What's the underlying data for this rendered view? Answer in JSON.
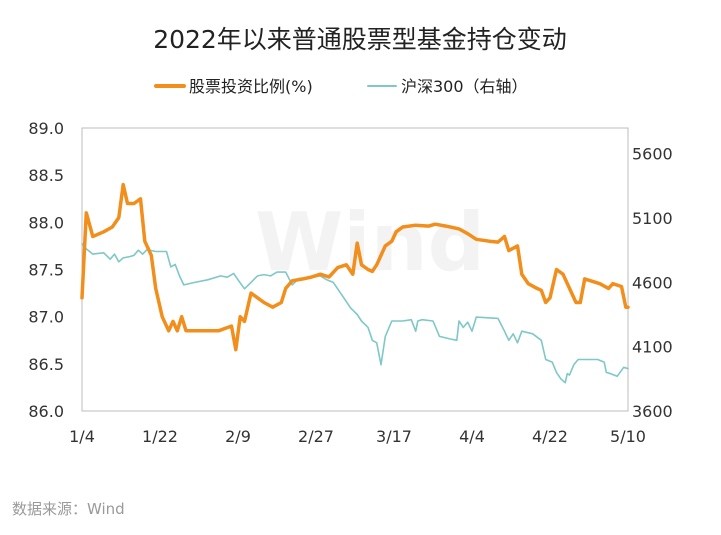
{
  "chart_data": {
    "type": "line",
    "title": "2022年以来普通股票型基金持仓变动",
    "source_note": "数据来源：Wind",
    "watermark": "Wind",
    "x_ticks": [
      "1/4",
      "1/22",
      "2/9",
      "2/27",
      "3/17",
      "4/4",
      "4/22",
      "5/10"
    ],
    "x_range": [
      0,
      126
    ],
    "y_left": {
      "min": 86.0,
      "max": 89.0,
      "step": 0.5,
      "ticks": [
        "86.0",
        "86.5",
        "87.0",
        "87.5",
        "88.0",
        "88.5",
        "89.0"
      ]
    },
    "y_right": {
      "min": 3600,
      "max": 5800,
      "ticks": [
        "3600",
        "4100",
        "4600",
        "5100",
        "5600"
      ]
    },
    "legend": [
      {
        "label": "股票投资比例(%)",
        "color": "#f28e1c"
      },
      {
        "label": "沪深300（右轴）",
        "color": "#7ec8c8"
      }
    ],
    "series": [
      {
        "name": "股票投资比例(%)",
        "axis": "left",
        "color": "#f28e1c",
        "points": [
          [
            0.0,
            87.2
          ],
          [
            1.0,
            88.1
          ],
          [
            2.5,
            87.85
          ],
          [
            5.0,
            87.9
          ],
          [
            7.0,
            87.95
          ],
          [
            8.5,
            88.05
          ],
          [
            9.5,
            88.4
          ],
          [
            10.5,
            88.2
          ],
          [
            12.0,
            88.2
          ],
          [
            13.5,
            88.25
          ],
          [
            14.5,
            87.8
          ],
          [
            16.0,
            87.65
          ],
          [
            17.0,
            87.3
          ],
          [
            18.5,
            87.0
          ],
          [
            20.0,
            86.85
          ],
          [
            21.0,
            86.95
          ],
          [
            22.0,
            86.85
          ],
          [
            23.0,
            87.0
          ],
          [
            24.0,
            86.85
          ],
          [
            28.0,
            86.85
          ],
          [
            31.5,
            86.85
          ],
          [
            34.5,
            86.9
          ],
          [
            35.5,
            86.65
          ],
          [
            36.5,
            87.0
          ],
          [
            37.5,
            86.95
          ],
          [
            39.0,
            87.25
          ],
          [
            40.5,
            87.2
          ],
          [
            42.0,
            87.15
          ],
          [
            44.0,
            87.1
          ],
          [
            46.0,
            87.15
          ],
          [
            47.0,
            87.3
          ],
          [
            48.5,
            87.38
          ],
          [
            51.0,
            87.4
          ],
          [
            53.0,
            87.42
          ],
          [
            55.0,
            87.45
          ],
          [
            57.0,
            87.42
          ],
          [
            59.0,
            87.52
          ],
          [
            61.0,
            87.55
          ],
          [
            62.5,
            87.45
          ],
          [
            63.5,
            87.78
          ],
          [
            64.5,
            87.55
          ],
          [
            66.0,
            87.5
          ],
          [
            67.0,
            87.48
          ],
          [
            68.0,
            87.55
          ],
          [
            70.0,
            87.75
          ],
          [
            71.5,
            87.8
          ],
          [
            72.5,
            87.9
          ],
          [
            74.0,
            87.95
          ],
          [
            77.0,
            87.97
          ],
          [
            80.0,
            87.96
          ],
          [
            81.5,
            87.98
          ],
          [
            84.0,
            87.96
          ],
          [
            87.0,
            87.93
          ],
          [
            89.0,
            87.88
          ],
          [
            91.0,
            87.82
          ],
          [
            94.0,
            87.8
          ],
          [
            96.0,
            87.79
          ],
          [
            97.5,
            87.85
          ],
          [
            98.5,
            87.7
          ],
          [
            100.5,
            87.75
          ],
          [
            101.5,
            87.45
          ],
          [
            103.0,
            87.35
          ],
          [
            105.0,
            87.3
          ],
          [
            106.0,
            87.28
          ],
          [
            107.0,
            87.15
          ],
          [
            108.0,
            87.2
          ],
          [
            109.5,
            87.5
          ],
          [
            111.0,
            87.45
          ],
          [
            112.5,
            87.3
          ],
          [
            114.0,
            87.15
          ],
          [
            115.0,
            87.15
          ],
          [
            116.0,
            87.4
          ],
          [
            119.5,
            87.35
          ],
          [
            121.5,
            87.3
          ],
          [
            122.5,
            87.35
          ],
          [
            124.5,
            87.32
          ],
          [
            125.5,
            87.1
          ],
          [
            126.0,
            87.1
          ]
        ]
      },
      {
        "name": "沪深300（右轴）",
        "axis": "right",
        "color": "#7ec8c8",
        "points": [
          [
            0.0,
            4900
          ],
          [
            1.0,
            4860
          ],
          [
            2.5,
            4820
          ],
          [
            5.0,
            4830
          ],
          [
            6.5,
            4780
          ],
          [
            7.5,
            4820
          ],
          [
            8.5,
            4760
          ],
          [
            9.5,
            4790
          ],
          [
            11.0,
            4800
          ],
          [
            12.0,
            4810
          ],
          [
            13.0,
            4850
          ],
          [
            14.0,
            4820
          ],
          [
            15.0,
            4855
          ],
          [
            17.0,
            4840
          ],
          [
            19.5,
            4840
          ],
          [
            20.5,
            4720
          ],
          [
            21.5,
            4740
          ],
          [
            22.5,
            4650
          ],
          [
            23.5,
            4580
          ],
          [
            26.0,
            4600
          ],
          [
            29.0,
            4620
          ],
          [
            32.0,
            4650
          ],
          [
            33.5,
            4640
          ],
          [
            35.0,
            4670
          ],
          [
            36.0,
            4620
          ],
          [
            37.5,
            4550
          ],
          [
            39.0,
            4600
          ],
          [
            40.5,
            4650
          ],
          [
            42.0,
            4660
          ],
          [
            43.5,
            4650
          ],
          [
            45.0,
            4680
          ],
          [
            46.0,
            4680
          ],
          [
            47.0,
            4680
          ],
          [
            48.5,
            4580
          ],
          [
            50.0,
            4630
          ],
          [
            52.0,
            4630
          ],
          [
            55.0,
            4650
          ],
          [
            56.5,
            4620
          ],
          [
            58.0,
            4600
          ],
          [
            60.0,
            4500
          ],
          [
            62.0,
            4400
          ],
          [
            63.5,
            4350
          ],
          [
            64.5,
            4300
          ],
          [
            66.0,
            4250
          ],
          [
            67.0,
            4150
          ],
          [
            68.0,
            4130
          ],
          [
            69.0,
            3960
          ],
          [
            70.0,
            4180
          ],
          [
            71.5,
            4300
          ],
          [
            74.0,
            4300
          ],
          [
            76.0,
            4310
          ],
          [
            77.0,
            4220
          ],
          [
            77.5,
            4300
          ],
          [
            78.5,
            4310
          ],
          [
            81.0,
            4300
          ],
          [
            82.5,
            4180
          ],
          [
            85.0,
            4160
          ],
          [
            86.5,
            4150
          ],
          [
            87.0,
            4300
          ],
          [
            88.0,
            4250
          ],
          [
            89.0,
            4290
          ],
          [
            90.0,
            4220
          ],
          [
            91.0,
            4330
          ],
          [
            96.0,
            4320
          ],
          [
            97.5,
            4220
          ],
          [
            98.5,
            4150
          ],
          [
            99.5,
            4200
          ],
          [
            100.5,
            4130
          ],
          [
            101.5,
            4220
          ],
          [
            104.0,
            4200
          ],
          [
            106.0,
            4150
          ],
          [
            107.0,
            4000
          ],
          [
            108.5,
            3980
          ],
          [
            109.5,
            3900
          ],
          [
            110.5,
            3850
          ],
          [
            111.5,
            3820
          ],
          [
            112.0,
            3890
          ],
          [
            112.5,
            3880
          ],
          [
            113.5,
            3960
          ],
          [
            114.5,
            4000
          ],
          [
            119.0,
            4000
          ],
          [
            120.5,
            3980
          ],
          [
            121.0,
            3900
          ],
          [
            122.0,
            3890
          ],
          [
            123.5,
            3870
          ],
          [
            125.0,
            3940
          ],
          [
            126.0,
            3930
          ]
        ]
      }
    ]
  }
}
